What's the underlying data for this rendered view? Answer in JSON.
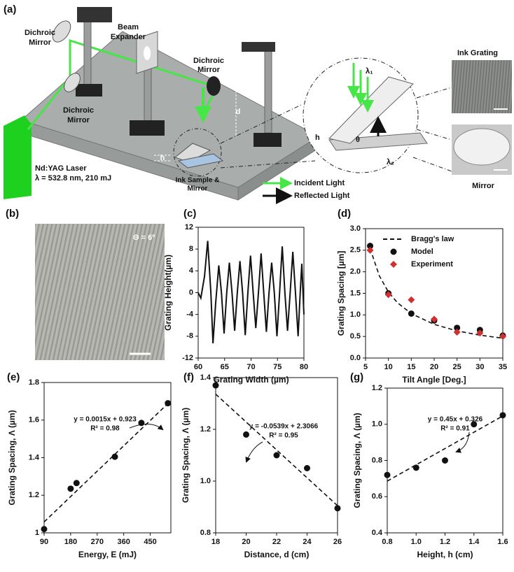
{
  "diagram": {
    "panel": "(a)",
    "dichroic_mirror_1": [
      "Dichroic",
      "Mirror"
    ],
    "beam_expander": [
      "Beam",
      "Expander"
    ],
    "dichroic_mirror_2": [
      "Dichroic",
      "Mirror"
    ],
    "dichroic_mirror_3": [
      "Dichroic",
      "Mirror"
    ],
    "laser": [
      "Nd:YAG Laser",
      "λ = 532.8 nm, 210 mJ"
    ],
    "d": "d",
    "h": "h",
    "sample": [
      "Ink Sample &",
      "Mirror"
    ],
    "incident": "Incident Light",
    "reflected": "Reflected Light",
    "lambda1": "λ₁",
    "lambda2": "λ₂",
    "inset_h": "h",
    "theta": "θ",
    "ink_grating": "Ink Grating",
    "mirror": "Mirror"
  },
  "image": {
    "panel": "(b)",
    "annotation": "Θ = 6º"
  },
  "chart_data": [
    {
      "type": "line",
      "panel": "(c)",
      "xlabel": "Grating Width (µm)",
      "ylabel": "Grating Height(µm)",
      "xlim": [
        60,
        80
      ],
      "ylim": [
        -12,
        12
      ],
      "xticks": [
        60,
        65,
        70,
        75,
        80
      ],
      "yticks": [
        -12,
        -8,
        -4,
        0,
        4,
        8,
        12
      ],
      "series": [
        {
          "color": "#111111",
          "line": "solid",
          "x": [
            60,
            60.5,
            61.2,
            61.8,
            62.4,
            62.8,
            63.3,
            63.9,
            64.4,
            64.9,
            65.4,
            65.9,
            66.4,
            66.9,
            67.4,
            67.9,
            68.4,
            68.9,
            69.4,
            69.9,
            70.4,
            70.9,
            71.4,
            71.9,
            72.4,
            72.9,
            73.4,
            73.9,
            74.4,
            74.9,
            75.4,
            75.9,
            76.4,
            76.9,
            77.4,
            77.9,
            78.4,
            78.9,
            79.3,
            79.6,
            80
          ],
          "values": [
            0,
            -1,
            3,
            9.5,
            0,
            -9.3,
            -2,
            5,
            0,
            -7.5,
            0,
            5.5,
            0,
            -7,
            0,
            5.8,
            0,
            -7.8,
            0,
            6.8,
            0,
            -6.5,
            0,
            7.2,
            0,
            -7.2,
            0,
            5.5,
            0,
            -8,
            0,
            8.5,
            0,
            -7,
            0,
            7.5,
            0,
            -8,
            0,
            5.3,
            -4
          ]
        }
      ]
    },
    {
      "type": "scatter",
      "panel": "(d)",
      "xlabel": "Tilt Angle [Deg.]",
      "ylabel": "Grating Spacing [µm]",
      "xlim": [
        5,
        35
      ],
      "ylim": [
        0,
        3
      ],
      "xticks": [
        5,
        10,
        15,
        20,
        25,
        30,
        35
      ],
      "yticks": [
        {
          "value": 0,
          "label": "0.0"
        },
        0.5,
        {
          "value": 1,
          "label": "1.0"
        },
        1.5,
        {
          "value": 2,
          "label": "2.0"
        },
        2.5,
        {
          "value": 3,
          "label": "3.0"
        }
      ],
      "legend": "upper right",
      "series": [
        {
          "name": "Bragg's law",
          "color": "#111111",
          "line": "dashed",
          "x": [
            6,
            8,
            10,
            12,
            15,
            20,
            25,
            30,
            35
          ],
          "values": [
            2.54,
            1.91,
            1.53,
            1.28,
            1.03,
            0.78,
            0.63,
            0.53,
            0.46
          ]
        },
        {
          "name": "Model",
          "color": "#111111",
          "marker": "circle",
          "x": [
            6,
            10,
            15,
            20,
            25,
            30,
            35
          ],
          "values": [
            2.6,
            1.5,
            1.03,
            0.87,
            0.7,
            0.65,
            0.52
          ]
        },
        {
          "name": "Experiment",
          "color": "#d03030",
          "marker": "diamond",
          "x": [
            6,
            10,
            15,
            20,
            25,
            30,
            35
          ],
          "values": [
            2.5,
            1.47,
            1.35,
            0.9,
            0.6,
            0.58,
            0.5
          ]
        }
      ]
    },
    {
      "type": "scatter",
      "panel": "(e)",
      "xlabel": "Energy, E (mJ)",
      "ylabel": "Grating Spacing, Λ (µm)",
      "xlim": [
        90,
        520
      ],
      "ylim": [
        1,
        1.8
      ],
      "xticks": [
        90,
        180,
        270,
        360,
        450
      ],
      "yticks": [
        1,
        1.2,
        1.4,
        1.6,
        1.8
      ],
      "annotation": [
        "y = 0.0015x + 0.923",
        "R² = 0.98"
      ],
      "series": [
        {
          "color": "#111111",
          "marker": "circle",
          "x": [
            90,
            180,
            200,
            330,
            420,
            510
          ],
          "values": [
            1.02,
            1.235,
            1.265,
            1.405,
            1.585,
            1.69
          ]
        },
        {
          "color": "#111111",
          "line": "dashed",
          "x": [
            90,
            510
          ],
          "values": [
            1.058,
            1.688
          ]
        }
      ]
    },
    {
      "type": "scatter",
      "panel": "(f)",
      "xlabel": "Distance, d (cm)",
      "ylabel": "Grating Spacing, Λ (µm)",
      "xlim": [
        18,
        26
      ],
      "ylim": [
        0.8,
        1.4
      ],
      "xticks": [
        18,
        20,
        22,
        24,
        26
      ],
      "yticks": [
        0.8,
        {
          "value": 1,
          "label": "1.0"
        },
        1.2,
        1.4
      ],
      "annotation": [
        "y = -0.0539x + 2.3066",
        "R² = 0.95"
      ],
      "series": [
        {
          "color": "#111111",
          "marker": "circle",
          "x": [
            18,
            20,
            22,
            24,
            26
          ],
          "values": [
            1.37,
            1.18,
            1.1,
            1.05,
            0.895
          ]
        },
        {
          "color": "#111111",
          "line": "dashed",
          "x": [
            18,
            26
          ],
          "values": [
            1.336,
            0.905
          ]
        }
      ]
    },
    {
      "type": "scatter",
      "panel": "(g)",
      "xlabel": "Height, h (cm)",
      "ylabel": "Grating Spacing, Λ (µm)",
      "xlim": [
        0.8,
        1.6
      ],
      "ylim": [
        0.4,
        1.2
      ],
      "xticks": [
        0.8,
        {
          "value": 1,
          "label": "1.0"
        },
        1.2,
        1.4,
        1.6
      ],
      "yticks": [
        0.4,
        0.6,
        0.8,
        {
          "value": 1,
          "label": "1.0"
        },
        1.2
      ],
      "annotation": [
        "y = 0.45x + 0.326",
        "R² = 0.91"
      ],
      "series": [
        {
          "color": "#111111",
          "marker": "circle",
          "x": [
            0.8,
            1,
            1.2,
            1.4,
            1.6
          ],
          "values": [
            0.72,
            0.76,
            0.8,
            1.0,
            1.05
          ]
        },
        {
          "color": "#111111",
          "line": "dashed",
          "x": [
            0.8,
            1.6
          ],
          "values": [
            0.686,
            1.046
          ]
        }
      ]
    }
  ]
}
